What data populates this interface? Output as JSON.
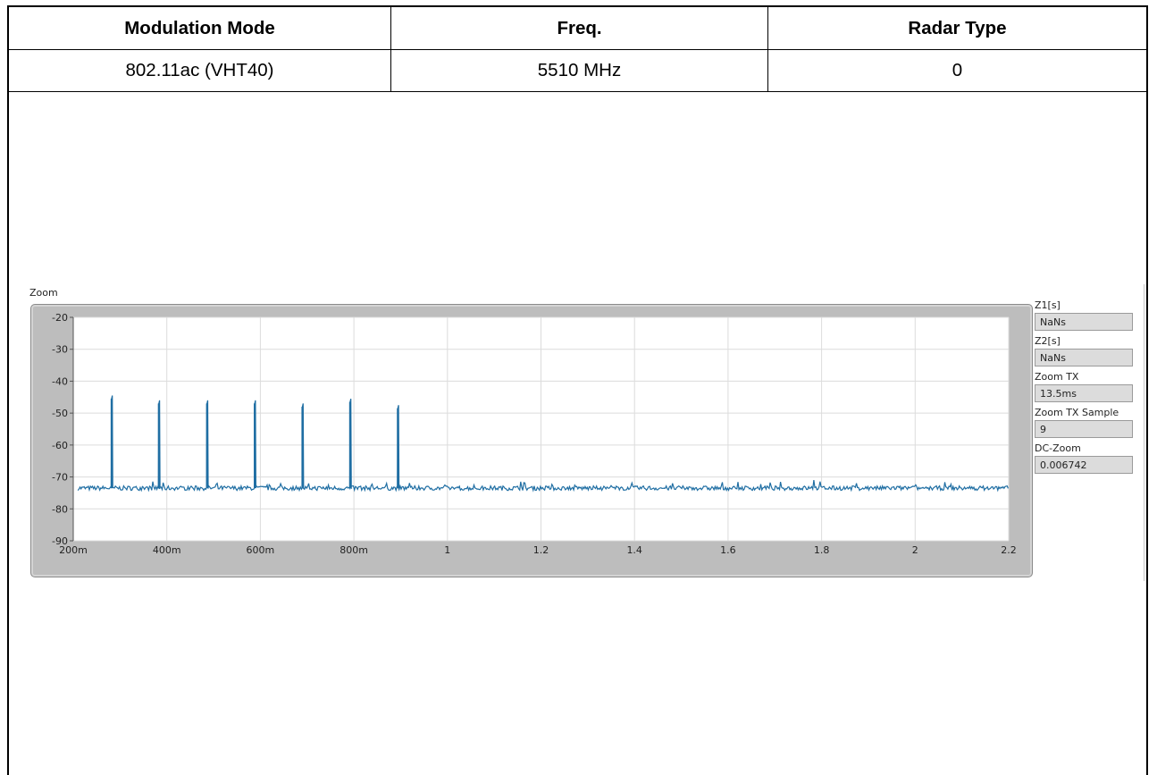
{
  "table": {
    "headers": [
      "Modulation Mode",
      "Freq.",
      "Radar Type"
    ],
    "row": [
      "802.11ac (VHT40)",
      "5510 MHz",
      "0"
    ]
  },
  "graph": {
    "title": "Zoom",
    "indicators": [
      {
        "label": "Z1[s]",
        "value": "NaNs"
      },
      {
        "label": "Z2[s]",
        "value": "NaNs"
      },
      {
        "label": "Zoom TX",
        "value": "13.5ms"
      },
      {
        "label": "Zoom TX Sample",
        "value": "9"
      },
      {
        "label": "DC-Zoom",
        "value": "0.006742"
      }
    ]
  },
  "chart_data": {
    "type": "line",
    "title": "Zoom",
    "xlabel": "",
    "ylabel": "",
    "xlim": [
      0.2,
      2.2
    ],
    "ylim": [
      -90,
      -20
    ],
    "x_ticks": [
      {
        "value": 0.2,
        "label": "200m"
      },
      {
        "value": 0.4,
        "label": "400m"
      },
      {
        "value": 0.6,
        "label": "600m"
      },
      {
        "value": 0.8,
        "label": "800m"
      },
      {
        "value": 1.0,
        "label": "1"
      },
      {
        "value": 1.2,
        "label": "1.2"
      },
      {
        "value": 1.4,
        "label": "1.4"
      },
      {
        "value": 1.6,
        "label": "1.6"
      },
      {
        "value": 1.8,
        "label": "1.8"
      },
      {
        "value": 2.0,
        "label": "2"
      },
      {
        "value": 2.2,
        "label": "2.2"
      }
    ],
    "y_ticks": [
      {
        "value": -20,
        "label": "-20"
      },
      {
        "value": -30,
        "label": "-30"
      },
      {
        "value": -40,
        "label": "-40"
      },
      {
        "value": -50,
        "label": "-50"
      },
      {
        "value": -60,
        "label": "-60"
      },
      {
        "value": -70,
        "label": "-70"
      },
      {
        "value": -80,
        "label": "-80"
      },
      {
        "value": -90,
        "label": "-90"
      }
    ],
    "grid": true,
    "noise_floor": -73.5,
    "pulses": [
      {
        "x": 0.282,
        "y": -45.5
      },
      {
        "x": 0.383,
        "y": -47
      },
      {
        "x": 0.486,
        "y": -47
      },
      {
        "x": 0.588,
        "y": -47
      },
      {
        "x": 0.69,
        "y": -48
      },
      {
        "x": 0.792,
        "y": -46.5
      },
      {
        "x": 0.894,
        "y": -48.5
      }
    ],
    "minor_bumps": [
      {
        "x": 1.156,
        "y": -71.5
      },
      {
        "x": 1.783,
        "y": -71
      }
    ],
    "colors": {
      "line": "#1f6ea3",
      "grid": "#dcdcdc",
      "frame": "#bdbdbd"
    }
  }
}
